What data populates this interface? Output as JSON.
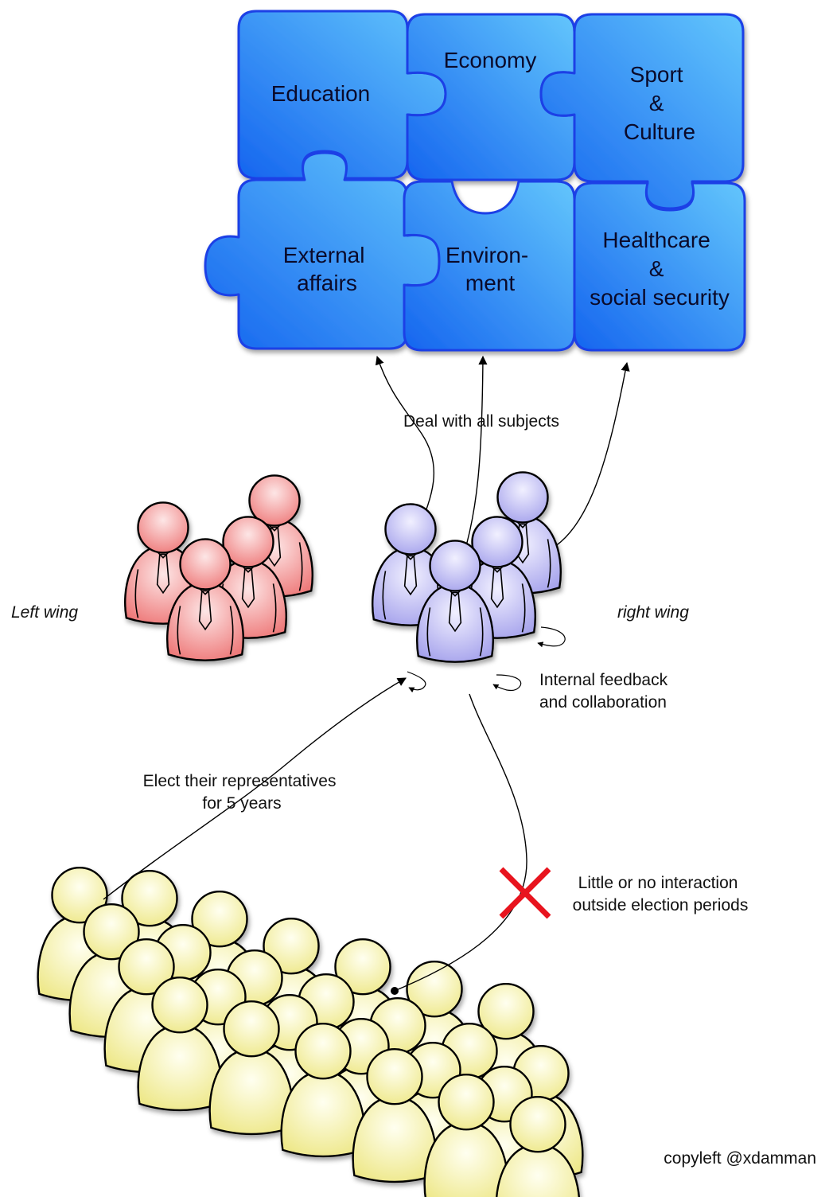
{
  "puzzle": {
    "pieces": [
      {
        "lines": [
          "Education"
        ]
      },
      {
        "lines": [
          "Economy"
        ]
      },
      {
        "lines": [
          "Sport",
          "&",
          "Culture"
        ]
      },
      {
        "lines": [
          "External",
          "affairs"
        ]
      },
      {
        "lines": [
          "Environ-",
          "ment"
        ]
      },
      {
        "lines": [
          "Healthcare",
          "&",
          "social security"
        ]
      }
    ]
  },
  "groups": {
    "left_label": "Left wing",
    "right_label": "right wing"
  },
  "annotations": {
    "deal": "Deal with all subjects",
    "internal": [
      "Internal feedback",
      "and collaboration"
    ],
    "elect": [
      "Elect their representatives",
      "for 5 years"
    ],
    "little": [
      "Little or no interaction",
      "outside election periods"
    ]
  },
  "footer": {
    "copyleft": "copyleft @xdamman"
  },
  "colors": {
    "puzzle_light": "#5ec2fb",
    "puzzle_dark": "#1468f0",
    "puzzle_stroke": "#1d3fe6",
    "left_wing": "#f28a8a",
    "right_wing": "#b6b4ef",
    "citizens": "#f4f0a2",
    "cross": "#e8141e"
  }
}
